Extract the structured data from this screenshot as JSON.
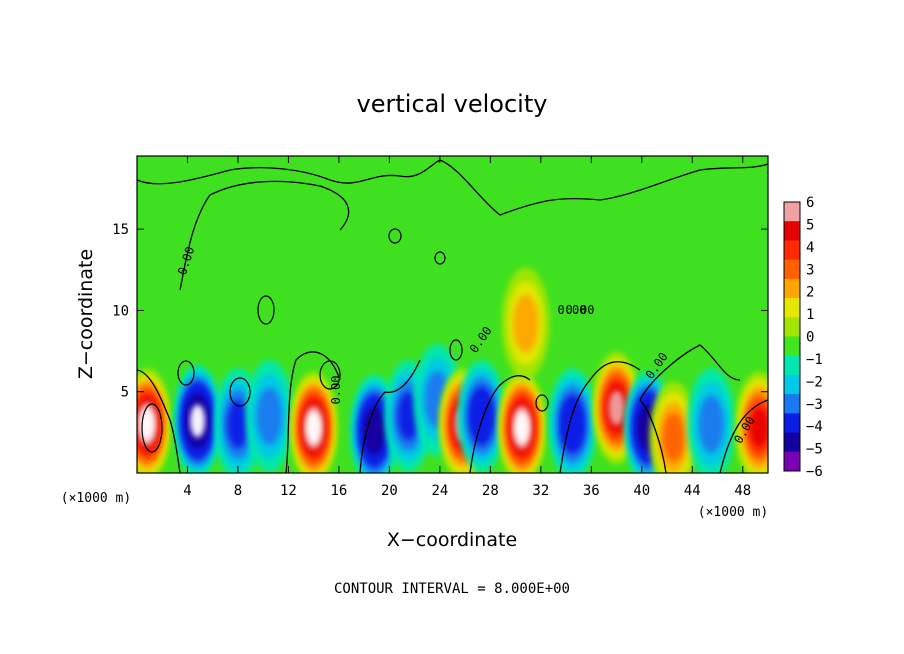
{
  "chart_data": {
    "type": "heatmap",
    "title": "vertical velocity",
    "xlabel": "X−coordinate",
    "ylabel": "Z−coordinate",
    "x_unit_left": "(×1000 m)",
    "x_unit_right": "(×1000 m)",
    "xlim": [
      0,
      50
    ],
    "ylim": [
      0,
      19.5
    ],
    "x_ticks": [
      4,
      8,
      12,
      16,
      20,
      24,
      28,
      32,
      36,
      40,
      44,
      48
    ],
    "x_tick_labels": [
      "4",
      "8",
      "12",
      "16",
      "20",
      "24",
      "28",
      "32",
      "36",
      "40",
      "44",
      "48"
    ],
    "y_ticks": [
      5,
      10,
      15
    ],
    "y_tick_labels": [
      "5",
      "10",
      "15"
    ],
    "colorbar": {
      "levels": [
        6,
        5,
        4,
        3,
        2,
        1,
        0,
        -1,
        -2,
        -3,
        -4,
        -5,
        -6
      ],
      "labels": [
        "6",
        "5",
        "4",
        "3",
        "2",
        "1",
        "0",
        "−1",
        "−2",
        "−3",
        "−4",
        "−5",
        "−6"
      ],
      "colors": [
        "#f0a0a0",
        "#e60000",
        "#ff2a00",
        "#ff6000",
        "#ffa500",
        "#e6e600",
        "#a0e600",
        "#40e620",
        "#00e8b0",
        "#00c8e8",
        "#1a78f0",
        "#0a1ee6",
        "#1400a0",
        "#7a00b4"
      ]
    },
    "contour_labels": [
      "0.00",
      "0.00",
      "0.00",
      "0.00",
      "0.00",
      "0.00",
      "0.00"
    ],
    "footer": "CONTOUR INTERVAL = 8.000E+00",
    "cells": [
      {
        "x": 0.8,
        "z": 3.0,
        "v": 8
      },
      {
        "x": 4.8,
        "z": 3.2,
        "v": -8
      },
      {
        "x": 8.0,
        "z": 3.0,
        "v": -4
      },
      {
        "x": 10.5,
        "z": 3.5,
        "v": -3
      },
      {
        "x": 14.0,
        "z": 2.8,
        "v": 8
      },
      {
        "x": 18.8,
        "z": 2.6,
        "v": -7
      },
      {
        "x": 21.5,
        "z": 3.5,
        "v": -4
      },
      {
        "x": 23.8,
        "z": 4.5,
        "v": -3
      },
      {
        "x": 25.8,
        "z": 3.0,
        "v": 7
      },
      {
        "x": 27.3,
        "z": 3.5,
        "v": -5
      },
      {
        "x": 30.5,
        "z": 2.8,
        "v": 8
      },
      {
        "x": 30.8,
        "z": 9.2,
        "v": 3
      },
      {
        "x": 34.5,
        "z": 3.0,
        "v": -5
      },
      {
        "x": 38.0,
        "z": 4.0,
        "v": 7
      },
      {
        "x": 40.5,
        "z": 2.8,
        "v": -7
      },
      {
        "x": 42.5,
        "z": 2.2,
        "v": 4
      },
      {
        "x": 45.5,
        "z": 3.0,
        "v": -3
      },
      {
        "x": 49.3,
        "z": 2.8,
        "v": 6
      }
    ]
  }
}
